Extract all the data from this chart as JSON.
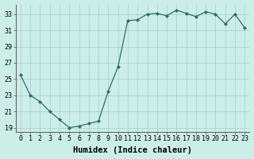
{
  "x": [
    0,
    1,
    2,
    3,
    4,
    5,
    6,
    7,
    8,
    9,
    10,
    11,
    12,
    13,
    14,
    15,
    16,
    17,
    18,
    19,
    20,
    21,
    22,
    23
  ],
  "y": [
    25.5,
    23.0,
    22.2,
    21.0,
    20.0,
    19.0,
    19.2,
    19.5,
    19.8,
    23.5,
    26.5,
    32.2,
    32.3,
    33.0,
    33.1,
    32.8,
    33.5,
    33.1,
    32.7,
    33.3,
    33.0,
    31.8,
    33.0,
    31.3
  ],
  "line_color": "#2e6e62",
  "marker": "D",
  "marker_size": 2,
  "bg_color": "#cceee8",
  "grid_color": "#aad4ce",
  "xlabel": "Humidex (Indice chaleur)",
  "xlim": [
    -0.5,
    23.5
  ],
  "ylim": [
    18.5,
    34.2
  ],
  "yticks": [
    19,
    21,
    23,
    25,
    27,
    29,
    31,
    33
  ],
  "xticks": [
    0,
    1,
    2,
    3,
    4,
    5,
    6,
    7,
    8,
    9,
    10,
    11,
    12,
    13,
    14,
    15,
    16,
    17,
    18,
    19,
    20,
    21,
    22,
    23
  ],
  "tick_fontsize": 6,
  "xlabel_fontsize": 7.5
}
